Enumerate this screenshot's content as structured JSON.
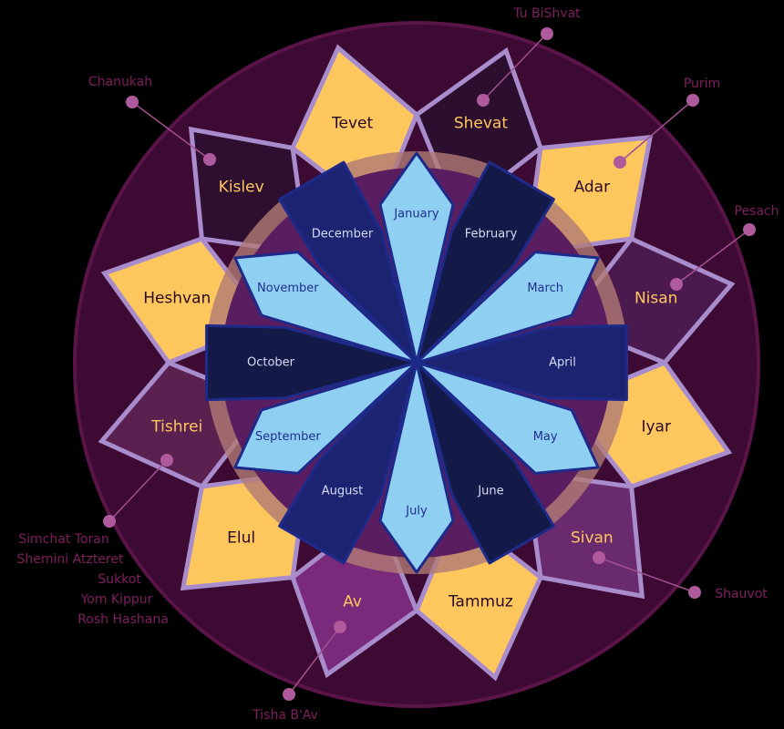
{
  "gregorian_months": [
    "January",
    "February",
    "March",
    "April",
    "May",
    "June",
    "July",
    "August",
    "September",
    "October",
    "November",
    "December"
  ],
  "hebrew_months": [
    "Tevet",
    "Shevat",
    "Adar",
    "Nisan",
    "Iyar",
    "Sivan",
    "Tammuz",
    "Av",
    "Elul",
    "Tishrei",
    "Heshvan",
    "Kislev"
  ],
  "holidays": [
    {
      "label": "Tu BiShvat"
    },
    {
      "label": "Purim"
    },
    {
      "label": "Pesach"
    },
    {
      "label": "Shauvot"
    },
    {
      "label": "Tisha B'Av"
    },
    {
      "labels": [
        "Simchat Toran",
        "Shemini Atzteret",
        "Sukkot",
        "Yom Kippur",
        "Rosh Hashana"
      ]
    },
    {
      "label": "Chanukah"
    }
  ]
}
